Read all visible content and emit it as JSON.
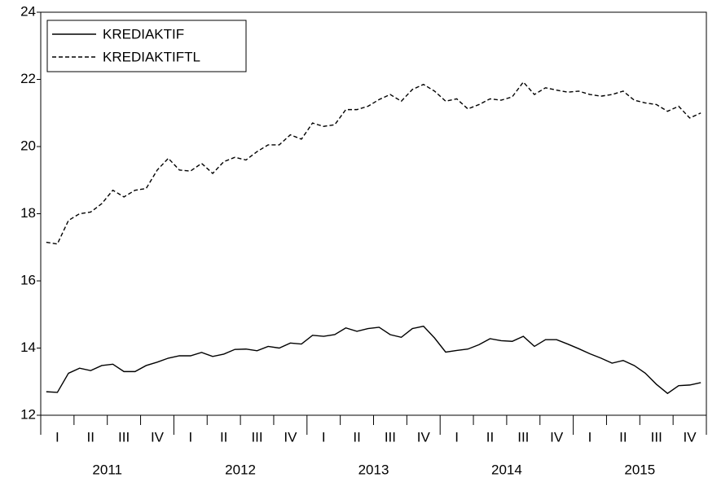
{
  "chart_data": {
    "type": "line",
    "categories": [
      null,
      "I",
      null,
      null,
      "II",
      null,
      null,
      "III",
      null,
      null,
      "IV",
      null,
      null,
      "I",
      null,
      null,
      "II",
      null,
      null,
      "III",
      null,
      null,
      "IV",
      null,
      null,
      "I",
      null,
      null,
      "II",
      null,
      null,
      "III",
      null,
      null,
      "IV",
      null,
      null,
      "I",
      null,
      null,
      "II",
      null,
      null,
      "III",
      null,
      null,
      "IV",
      null,
      null,
      "I",
      null,
      null,
      "II",
      null,
      null,
      "III",
      null,
      null,
      "IV",
      null
    ],
    "years": [
      "2011",
      "2012",
      "2013",
      "2014",
      "2015"
    ],
    "series": [
      {
        "name": "KREDIAKTIF",
        "color": "#000000",
        "dash": "solid",
        "values": [
          12.7,
          12.68,
          13.25,
          13.4,
          13.33,
          13.48,
          13.52,
          13.3,
          13.3,
          13.48,
          13.58,
          13.7,
          13.77,
          13.77,
          13.87,
          13.75,
          13.82,
          13.96,
          13.97,
          13.92,
          14.05,
          14.0,
          14.15,
          14.12,
          14.38,
          14.35,
          14.4,
          14.6,
          14.5,
          14.58,
          14.62,
          14.4,
          14.32,
          14.58,
          14.65,
          14.3,
          13.88,
          13.93,
          13.97,
          14.1,
          14.28,
          14.22,
          14.2,
          14.35,
          14.05,
          14.25,
          14.25,
          14.12,
          13.98,
          13.83,
          13.7,
          13.55,
          13.63,
          13.48,
          13.25,
          12.92,
          12.65,
          12.88,
          12.9,
          12.97
        ]
      },
      {
        "name": "KREDIAKTIFTL",
        "color": "#000000",
        "dash": "dashed",
        "values": [
          17.15,
          17.1,
          17.8,
          18.0,
          18.05,
          18.3,
          18.7,
          18.5,
          18.7,
          18.75,
          19.3,
          19.65,
          19.3,
          19.27,
          19.5,
          19.2,
          19.55,
          19.68,
          19.6,
          19.85,
          20.05,
          20.05,
          20.35,
          20.22,
          20.7,
          20.6,
          20.65,
          21.1,
          21.1,
          21.2,
          21.4,
          21.55,
          21.35,
          21.7,
          21.85,
          21.65,
          21.35,
          21.42,
          21.12,
          21.25,
          21.42,
          21.38,
          21.48,
          21.92,
          21.55,
          21.75,
          21.68,
          21.62,
          21.65,
          21.55,
          21.5,
          21.55,
          21.65,
          21.38,
          21.3,
          21.25,
          21.05,
          21.2,
          20.85,
          21.0
        ]
      }
    ],
    "ylim": [
      12,
      24
    ],
    "yticks": [
      12,
      14,
      16,
      18,
      20,
      22,
      24
    ],
    "grid": false,
    "legend": "top-left"
  }
}
